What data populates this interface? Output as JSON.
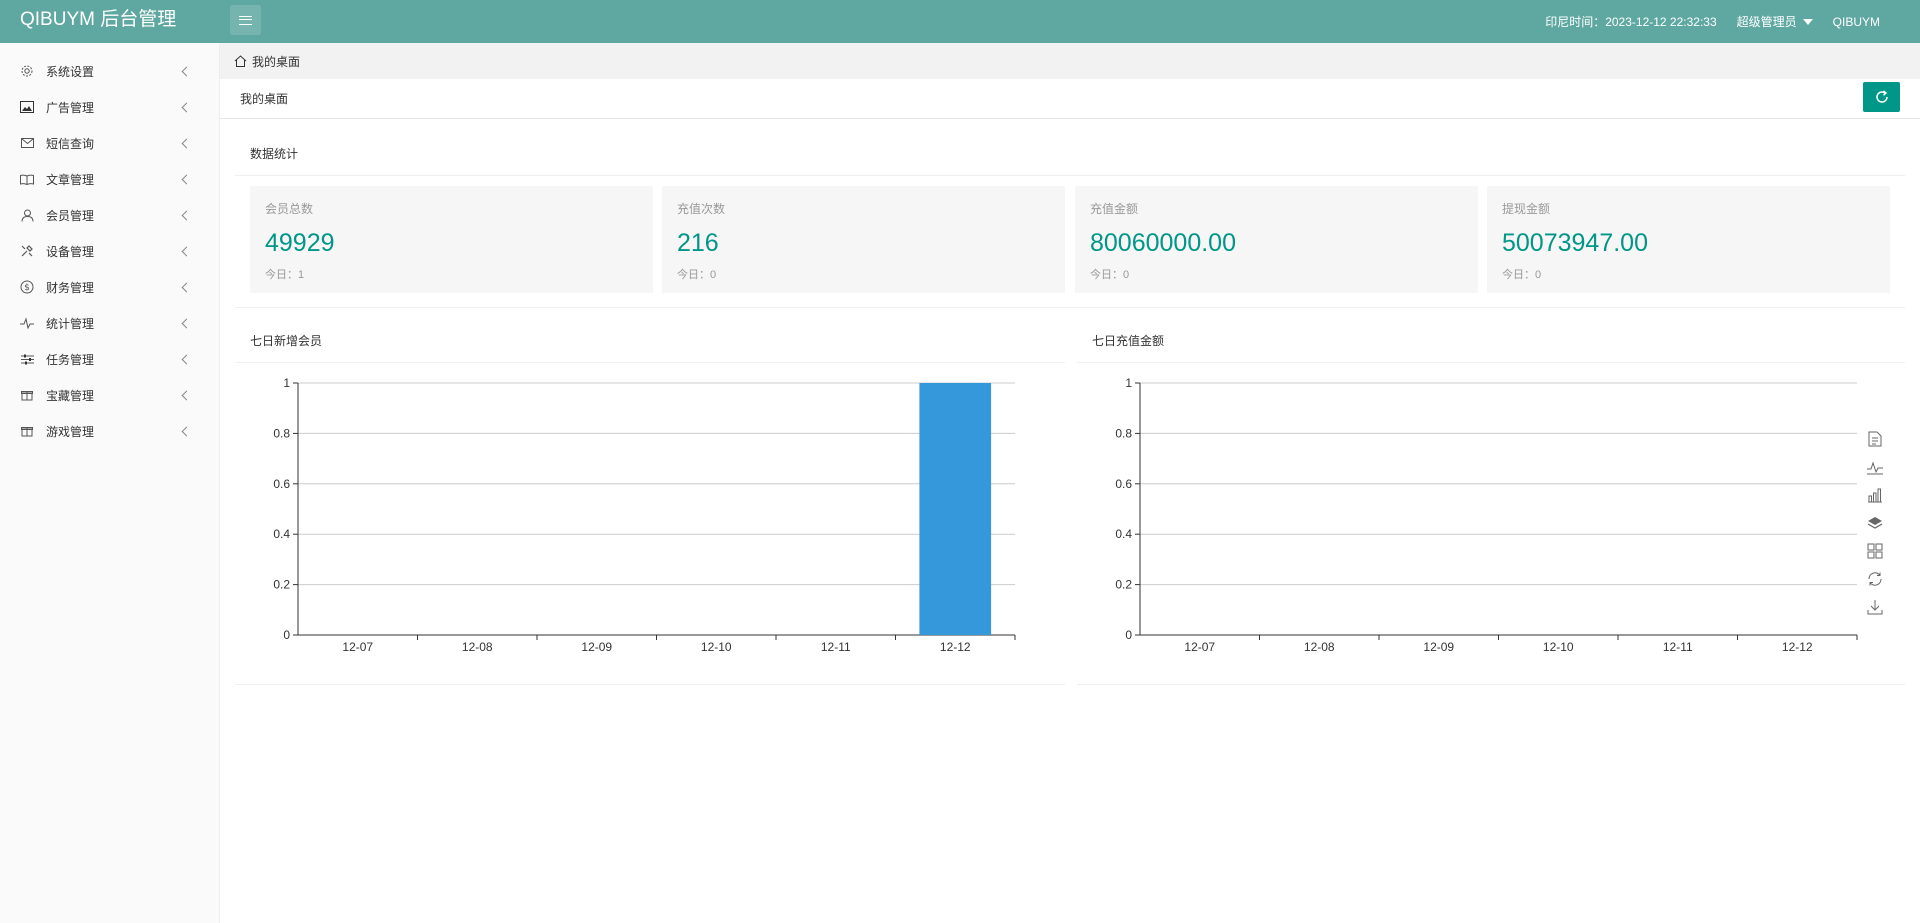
{
  "header": {
    "logo": "QIBUYM 后台管理",
    "time_label": "印尼时间：2023-12-12 22:32:33",
    "user": "超级管理员",
    "brand": "QIBUYM"
  },
  "sidebar": {
    "items": [
      {
        "label": "系统设置",
        "icon": "gear-icon"
      },
      {
        "label": "广告管理",
        "icon": "image-icon"
      },
      {
        "label": "短信查询",
        "icon": "mail-icon"
      },
      {
        "label": "文章管理",
        "icon": "book-icon"
      },
      {
        "label": "会员管理",
        "icon": "user-icon"
      },
      {
        "label": "设备管理",
        "icon": "tools-icon"
      },
      {
        "label": "财务管理",
        "icon": "dollar-icon"
      },
      {
        "label": "统计管理",
        "icon": "pulse-icon"
      },
      {
        "label": "任务管理",
        "icon": "sliders-icon"
      },
      {
        "label": "宝藏管理",
        "icon": "gift-icon"
      },
      {
        "label": "游戏管理",
        "icon": "gift-icon"
      }
    ]
  },
  "breadcrumb": {
    "label": "我的桌面"
  },
  "page": {
    "title": "我的桌面"
  },
  "stats": {
    "title": "数据统计",
    "cards": [
      {
        "label": "会员总数",
        "value": "49929",
        "today": "今日：1"
      },
      {
        "label": "充值次数",
        "value": "216",
        "today": "今日：0"
      },
      {
        "label": "充值金额",
        "value": "80060000.00",
        "today": "今日：0"
      },
      {
        "label": "提现金额",
        "value": "50073947.00",
        "today": "今日：0"
      }
    ]
  },
  "chart_data": [
    {
      "type": "bar",
      "title": "七日新增会员",
      "categories": [
        "12-07",
        "12-08",
        "12-09",
        "12-10",
        "12-11",
        "12-12"
      ],
      "values": [
        0,
        0,
        0,
        0,
        0,
        1
      ],
      "yticks": [
        "0",
        "0.2",
        "0.4",
        "0.6",
        "0.8",
        "1"
      ],
      "ylim": [
        0,
        1
      ],
      "grid": true,
      "color": "#3498db"
    },
    {
      "type": "bar",
      "title": "七日充值金额",
      "categories": [
        "12-07",
        "12-08",
        "12-09",
        "12-10",
        "12-11",
        "12-12"
      ],
      "values": [
        0,
        0,
        0,
        0,
        0,
        0
      ],
      "yticks": [
        "0",
        "0.2",
        "0.4",
        "0.6",
        "0.8",
        "1"
      ],
      "ylim": [
        0,
        1
      ],
      "grid": true,
      "color": "#3498db"
    }
  ],
  "toolbox": [
    "data-view-icon",
    "line-chart-icon",
    "bar-chart-icon",
    "stack-icon",
    "tiled-icon",
    "restore-icon",
    "save-image-icon"
  ]
}
